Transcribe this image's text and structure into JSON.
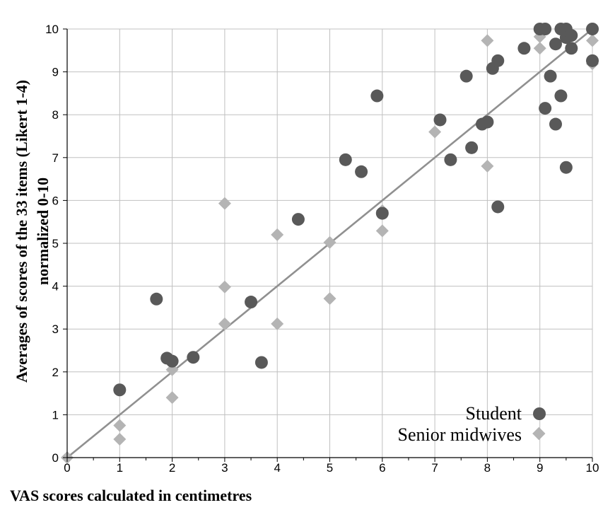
{
  "chart_data": {
    "type": "scatter",
    "title": "",
    "xlabel": "VAS scores calculated in centimetres",
    "ylabel_lines": [
      "Averages of scores of the 33 items (Likert 1-4)",
      "normalized 0-10"
    ],
    "xlim": [
      0,
      10
    ],
    "ylim": [
      0,
      10
    ],
    "xticks": [
      "0",
      "1",
      "2",
      "3",
      "4",
      "5",
      "6",
      "7",
      "8",
      "9",
      "10"
    ],
    "yticks": [
      "0",
      "1",
      "2",
      "3",
      "4",
      "5",
      "6",
      "7",
      "8",
      "9",
      "10"
    ],
    "grid": true,
    "legend_position": "bottom-right",
    "trendline": {
      "from": [
        0,
        0
      ],
      "to": [
        10,
        10
      ],
      "color": "#909090"
    },
    "series": [
      {
        "name": "Student",
        "marker": "circle",
        "color": "#595959",
        "points": [
          [
            1.0,
            1.58
          ],
          [
            1.7,
            3.7
          ],
          [
            1.9,
            2.32
          ],
          [
            2.0,
            2.25
          ],
          [
            2.4,
            2.34
          ],
          [
            3.5,
            3.63
          ],
          [
            3.7,
            2.22
          ],
          [
            4.4,
            5.56
          ],
          [
            5.3,
            6.95
          ],
          [
            5.6,
            6.67
          ],
          [
            5.9,
            8.44
          ],
          [
            6.0,
            5.7
          ],
          [
            7.1,
            7.88
          ],
          [
            7.3,
            6.95
          ],
          [
            7.6,
            8.9
          ],
          [
            7.7,
            7.23
          ],
          [
            7.9,
            7.78
          ],
          [
            8.0,
            7.83
          ],
          [
            8.1,
            9.08
          ],
          [
            8.2,
            9.26
          ],
          [
            8.2,
            5.85
          ],
          [
            8.7,
            9.55
          ],
          [
            9.0,
            10.0
          ],
          [
            9.1,
            10.0
          ],
          [
            9.1,
            8.15
          ],
          [
            9.2,
            8.9
          ],
          [
            9.3,
            9.65
          ],
          [
            9.3,
            7.78
          ],
          [
            9.4,
            10.0
          ],
          [
            9.4,
            8.44
          ],
          [
            9.5,
            10.0
          ],
          [
            9.5,
            9.8
          ],
          [
            9.5,
            6.77
          ],
          [
            9.6,
            9.55
          ],
          [
            9.6,
            9.85
          ],
          [
            10.0,
            10.0
          ],
          [
            10.0,
            9.26
          ]
        ]
      },
      {
        "name": "Senior midwives",
        "marker": "diamond",
        "color": "#b4b4b4",
        "points": [
          [
            0.0,
            0.0
          ],
          [
            1.0,
            0.75
          ],
          [
            1.0,
            0.43
          ],
          [
            2.0,
            2.05
          ],
          [
            2.0,
            1.4
          ],
          [
            3.0,
            5.93
          ],
          [
            3.0,
            3.98
          ],
          [
            3.0,
            3.12
          ],
          [
            4.0,
            5.2
          ],
          [
            4.0,
            3.12
          ],
          [
            5.0,
            5.02
          ],
          [
            5.0,
            3.71
          ],
          [
            6.0,
            5.76
          ],
          [
            6.0,
            5.29
          ],
          [
            7.0,
            7.6
          ],
          [
            8.0,
            9.73
          ],
          [
            8.0,
            6.8
          ],
          [
            9.0,
            9.82
          ],
          [
            9.0,
            9.55
          ],
          [
            10.0,
            10.0
          ],
          [
            10.0,
            9.73
          ],
          [
            10.0,
            9.19
          ]
        ]
      }
    ]
  }
}
